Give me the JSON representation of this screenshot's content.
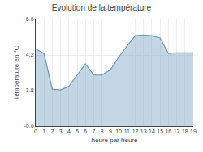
{
  "chart_data": {
    "type": "area",
    "title": "Evolution de la température",
    "xlabel": "heure par heure",
    "ylabel": "Température en °C",
    "x": [
      0,
      1,
      2,
      3,
      4,
      5,
      6,
      7,
      8,
      9,
      10,
      11,
      12,
      13,
      14,
      15,
      16,
      17,
      18,
      19
    ],
    "values": [
      4.6,
      4.3,
      1.9,
      1.85,
      2.1,
      2.85,
      3.6,
      2.85,
      2.85,
      3.2,
      4.05,
      4.8,
      5.5,
      5.55,
      5.5,
      5.35,
      4.3,
      4.35,
      4.35,
      4.35
    ],
    "color": "#6699bb",
    "xlim": [
      0,
      19
    ],
    "ylim": [
      -0.6,
      6.6
    ],
    "xticks": [
      0,
      1,
      2,
      3,
      4,
      5,
      6,
      7,
      8,
      9,
      10,
      11,
      12,
      13,
      14,
      15,
      16,
      17,
      18,
      19
    ],
    "yticks": [
      -0.6,
      1.8,
      4.2,
      6.6
    ],
    "grid": true
  }
}
